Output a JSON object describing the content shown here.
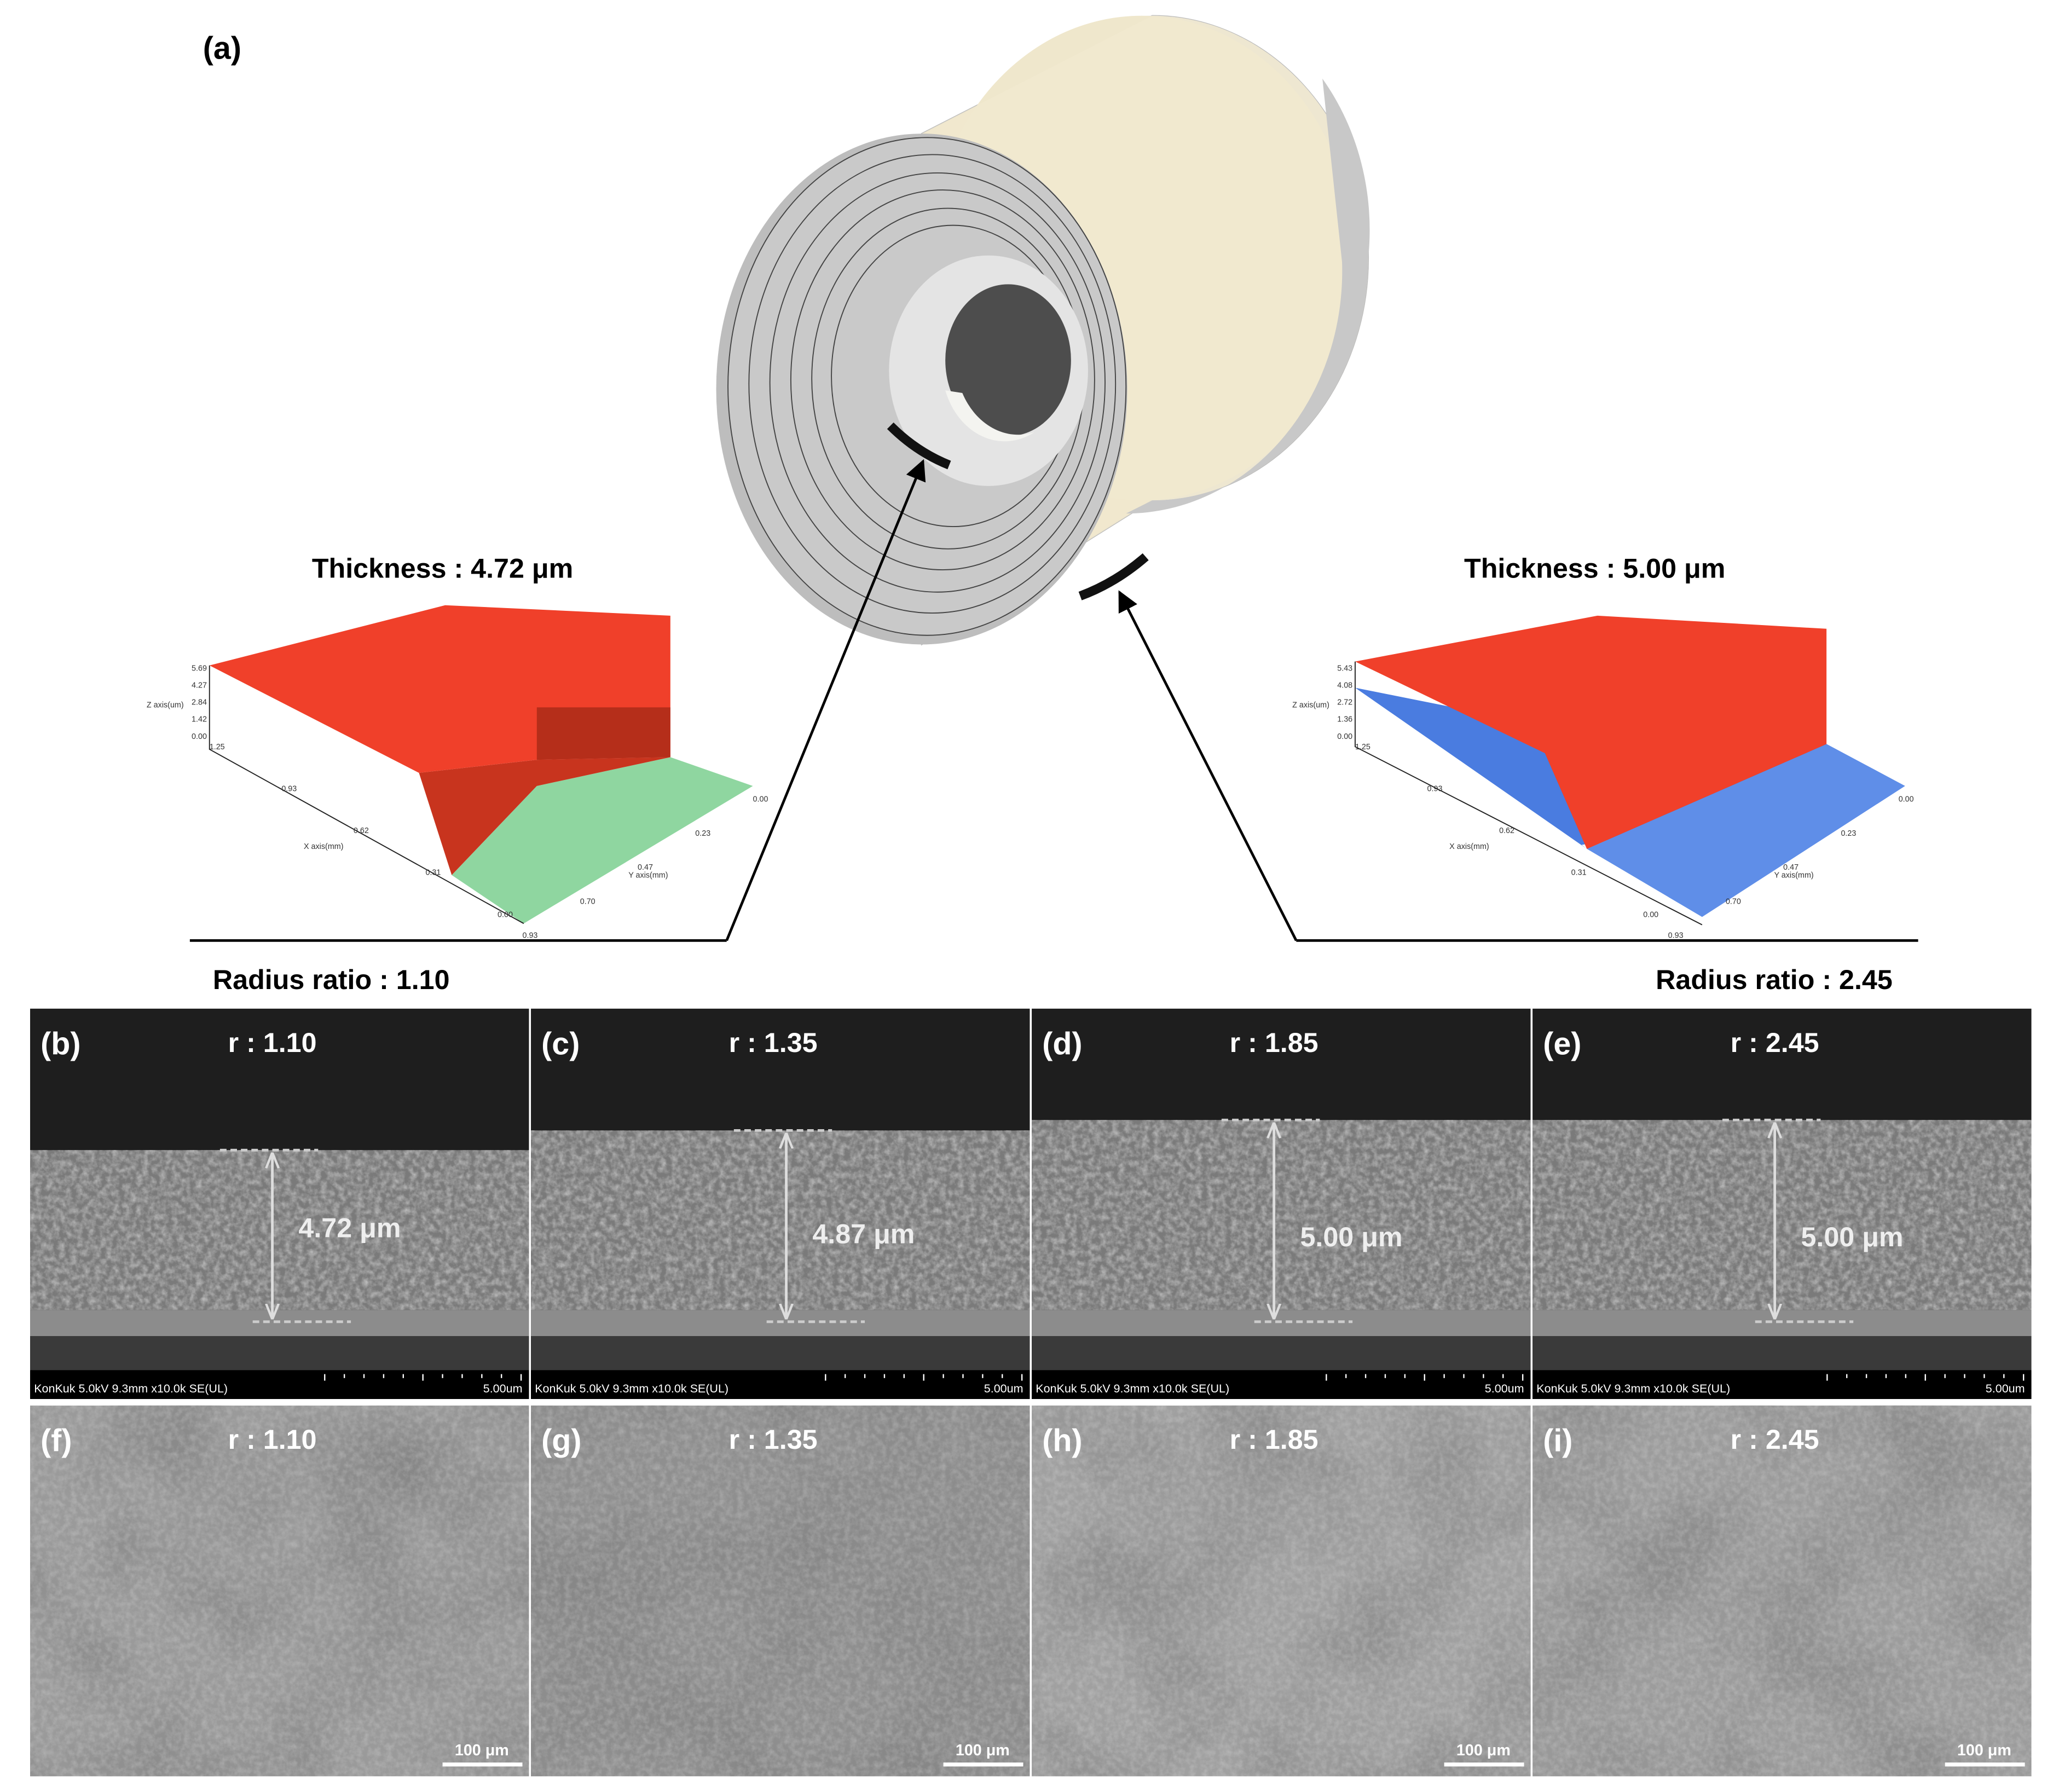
{
  "panel_a": {
    "label": "(a)",
    "left": {
      "thickness": "Thickness : 4.72 μm",
      "radius_ratio": "Radius ratio : 1.10",
      "z_axis": "Z axis(um)",
      "x_axis": "X axis(mm)",
      "y_axis": "Y axis(mm)",
      "z_ticks": [
        "5.69",
        "4.27",
        "2.84",
        "1.42",
        "0.00"
      ],
      "x_ticks": [
        "1.25",
        "0.93",
        "0.62",
        "0.31",
        "0.00"
      ],
      "y_ticks": [
        "0.00",
        "0.23",
        "0.47",
        "0.70",
        "0.93"
      ]
    },
    "right": {
      "thickness": "Thickness : 5.00 μm",
      "radius_ratio": "Radius ratio : 2.45",
      "z_axis": "Z axis(um)",
      "x_axis": "X axis(mm)",
      "y_axis": "Y axis(mm)",
      "z_ticks": [
        "5.43",
        "4.08",
        "2.72",
        "1.36",
        "0.00"
      ],
      "x_ticks": [
        "1.25",
        "0.93",
        "0.62",
        "0.31",
        "0.00"
      ],
      "y_ticks": [
        "0.00",
        "0.23",
        "0.47",
        "0.70",
        "0.93"
      ]
    }
  },
  "sem_cross_sections": [
    {
      "label": "(b)",
      "radius": "r : 1.10",
      "thickness": "4.72 μm",
      "info": "KonKuk 5.0kV 9.3mm x10.0k SE(UL)",
      "scale": "5.00um"
    },
    {
      "label": "(c)",
      "radius": "r : 1.35",
      "thickness": "4.87 μm",
      "info": "KonKuk 5.0kV 9.3mm x10.0k SE(UL)",
      "scale": "5.00um"
    },
    {
      "label": "(d)",
      "radius": "r : 1.85",
      "thickness": "5.00 μm",
      "info": "KonKuk 5.0kV 9.3mm x10.0k SE(UL)",
      "scale": "5.00um"
    },
    {
      "label": "(e)",
      "radius": "r : 2.45",
      "thickness": "5.00 μm",
      "info": "KonKuk 5.0kV 9.3mm x10.0k SE(UL)",
      "scale": "5.00um"
    }
  ],
  "sem_surfaces": [
    {
      "label": "(f)",
      "radius": "r : 1.10",
      "scale": "100 μm"
    },
    {
      "label": "(g)",
      "radius": "r : 1.35",
      "scale": "100 μm"
    },
    {
      "label": "(h)",
      "radius": "r : 1.85",
      "scale": "100 μm"
    },
    {
      "label": "(i)",
      "radius": "r : 2.45",
      "scale": "100 μm"
    }
  ]
}
